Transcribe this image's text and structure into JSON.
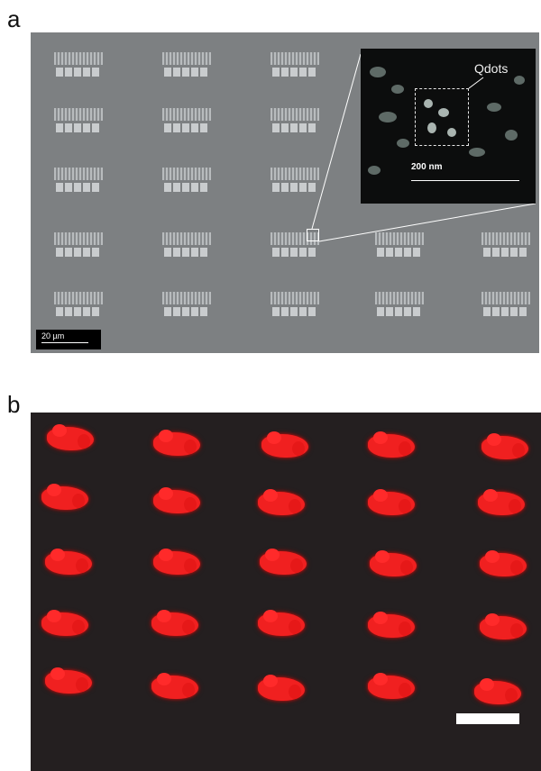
{
  "panels": {
    "a": {
      "letter": "a"
    },
    "b": {
      "letter": "b"
    }
  },
  "sem": {
    "scalebar_label": "20 µm",
    "inset": {
      "annotation": "Qdots",
      "scalebar_label": "200 nm"
    }
  },
  "colors": {
    "sem_background": "#7d8082",
    "inset_background": "#0c0d0d",
    "fluorescence_background": "#241f20",
    "quantum_dot_signal": "#f02020"
  }
}
